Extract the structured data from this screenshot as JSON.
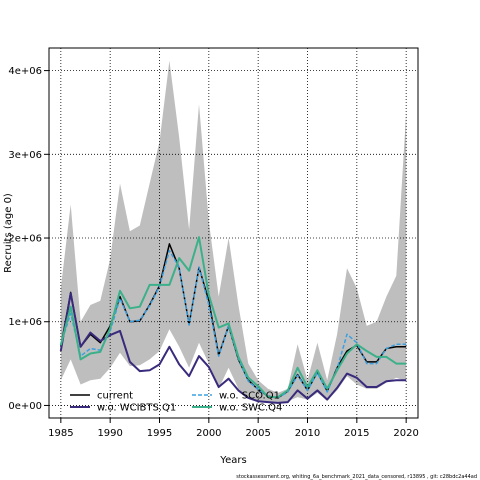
{
  "chart_data": {
    "type": "line",
    "title": "",
    "xlabel": "Years",
    "ylabel": "Recruits (age 0)",
    "xlim": [
      1983.8,
      2021.2
    ],
    "ylim": [
      -150000,
      4270000
    ],
    "x_ticks": [
      1985,
      1990,
      1995,
      2000,
      2005,
      2010,
      2015,
      2020
    ],
    "y_ticks": [
      0,
      1000000,
      2000000,
      3000000,
      4000000
    ],
    "y_tick_labels": [
      "0e+00",
      "1e+06",
      "2e+06",
      "3e+06",
      "4e+06"
    ],
    "grid": true,
    "grid_style": "dotted",
    "legend_position": "bottom-left",
    "x": [
      1985,
      1986,
      1987,
      1988,
      1989,
      1990,
      1991,
      1992,
      1993,
      1994,
      1995,
      1996,
      1997,
      1998,
      1999,
      2000,
      2001,
      2002,
      2003,
      2004,
      2005,
      2006,
      2007,
      2008,
      2009,
      2010,
      2011,
      2012,
      2013,
      2014,
      2015,
      2016,
      2017,
      2018,
      2019,
      2020
    ],
    "band": {
      "upper": [
        1400000,
        2400000,
        1000000,
        1200000,
        1250000,
        1750000,
        2650000,
        2080000,
        2150000,
        2650000,
        3150000,
        4120000,
        3200000,
        2100000,
        3600000,
        2200000,
        1300000,
        2000000,
        1200000,
        500000,
        300000,
        200000,
        150000,
        200000,
        730000,
        300000,
        750000,
        300000,
        850000,
        1640000,
        1400000,
        950000,
        1000000,
        1300000,
        1550000,
        3500000
      ],
      "lower": [
        300000,
        550000,
        250000,
        300000,
        320000,
        450000,
        630000,
        470000,
        480000,
        550000,
        650000,
        910000,
        700000,
        450000,
        750000,
        500000,
        200000,
        450000,
        200000,
        80000,
        50000,
        30000,
        20000,
        50000,
        100000,
        70000,
        150000,
        60000,
        180000,
        350000,
        250000,
        200000,
        200000,
        270000,
        330000,
        290000
      ]
    },
    "series": [
      {
        "name": "current",
        "color": "#000000",
        "dash": "",
        "width": 1.5,
        "values": [
          700000,
          1350000,
          700000,
          850000,
          750000,
          950000,
          1300000,
          1000000,
          1010000,
          1200000,
          1430000,
          1930000,
          1640000,
          970000,
          1650000,
          1250000,
          600000,
          950000,
          550000,
          300000,
          190000,
          110000,
          90000,
          170000,
          370000,
          180000,
          400000,
          170000,
          450000,
          650000,
          720000,
          520000,
          520000,
          680000,
          700000,
          700000
        ]
      },
      {
        "name": "w.o. WCIBTS.Q1",
        "color": "#3a2a7c",
        "dash": "",
        "width": 2,
        "values": [
          650000,
          1340000,
          700000,
          870000,
          770000,
          840000,
          890000,
          520000,
          410000,
          420000,
          490000,
          700000,
          490000,
          350000,
          590000,
          460000,
          220000,
          320000,
          180000,
          90000,
          50000,
          40000,
          30000,
          40000,
          180000,
          80000,
          180000,
          70000,
          210000,
          380000,
          330000,
          220000,
          220000,
          290000,
          300000,
          300000
        ]
      },
      {
        "name": "w.o. SCO.Q1",
        "color": "#3ca0e0",
        "dash": "4,2",
        "width": 1.5,
        "values": [
          730000,
          1100000,
          590000,
          680000,
          660000,
          890000,
          1280000,
          1000000,
          1020000,
          1190000,
          1420000,
          1850000,
          1650000,
          960000,
          1650000,
          1200000,
          590000,
          950000,
          560000,
          290000,
          190000,
          110000,
          90000,
          160000,
          360000,
          180000,
          390000,
          160000,
          440000,
          850000,
          750000,
          500000,
          500000,
          680000,
          730000,
          730000
        ]
      },
      {
        "name": "w.o. SWC.Q4",
        "color": "#3cb08a",
        "dash": "",
        "width": 2,
        "values": [
          720000,
          1180000,
          550000,
          620000,
          640000,
          920000,
          1370000,
          1160000,
          1180000,
          1440000,
          1440000,
          1440000,
          1760000,
          1610000,
          2010000,
          1320000,
          930000,
          980000,
          580000,
          330000,
          230000,
          100000,
          100000,
          180000,
          450000,
          220000,
          420000,
          200000,
          420000,
          620000,
          730000,
          650000,
          580000,
          580000,
          500000,
          500000
        ]
      }
    ]
  },
  "footer": "stockassessment.org, whiting_6a_benchmark_2021_data_censored, r13895 , git: c28bdc2a44ad"
}
